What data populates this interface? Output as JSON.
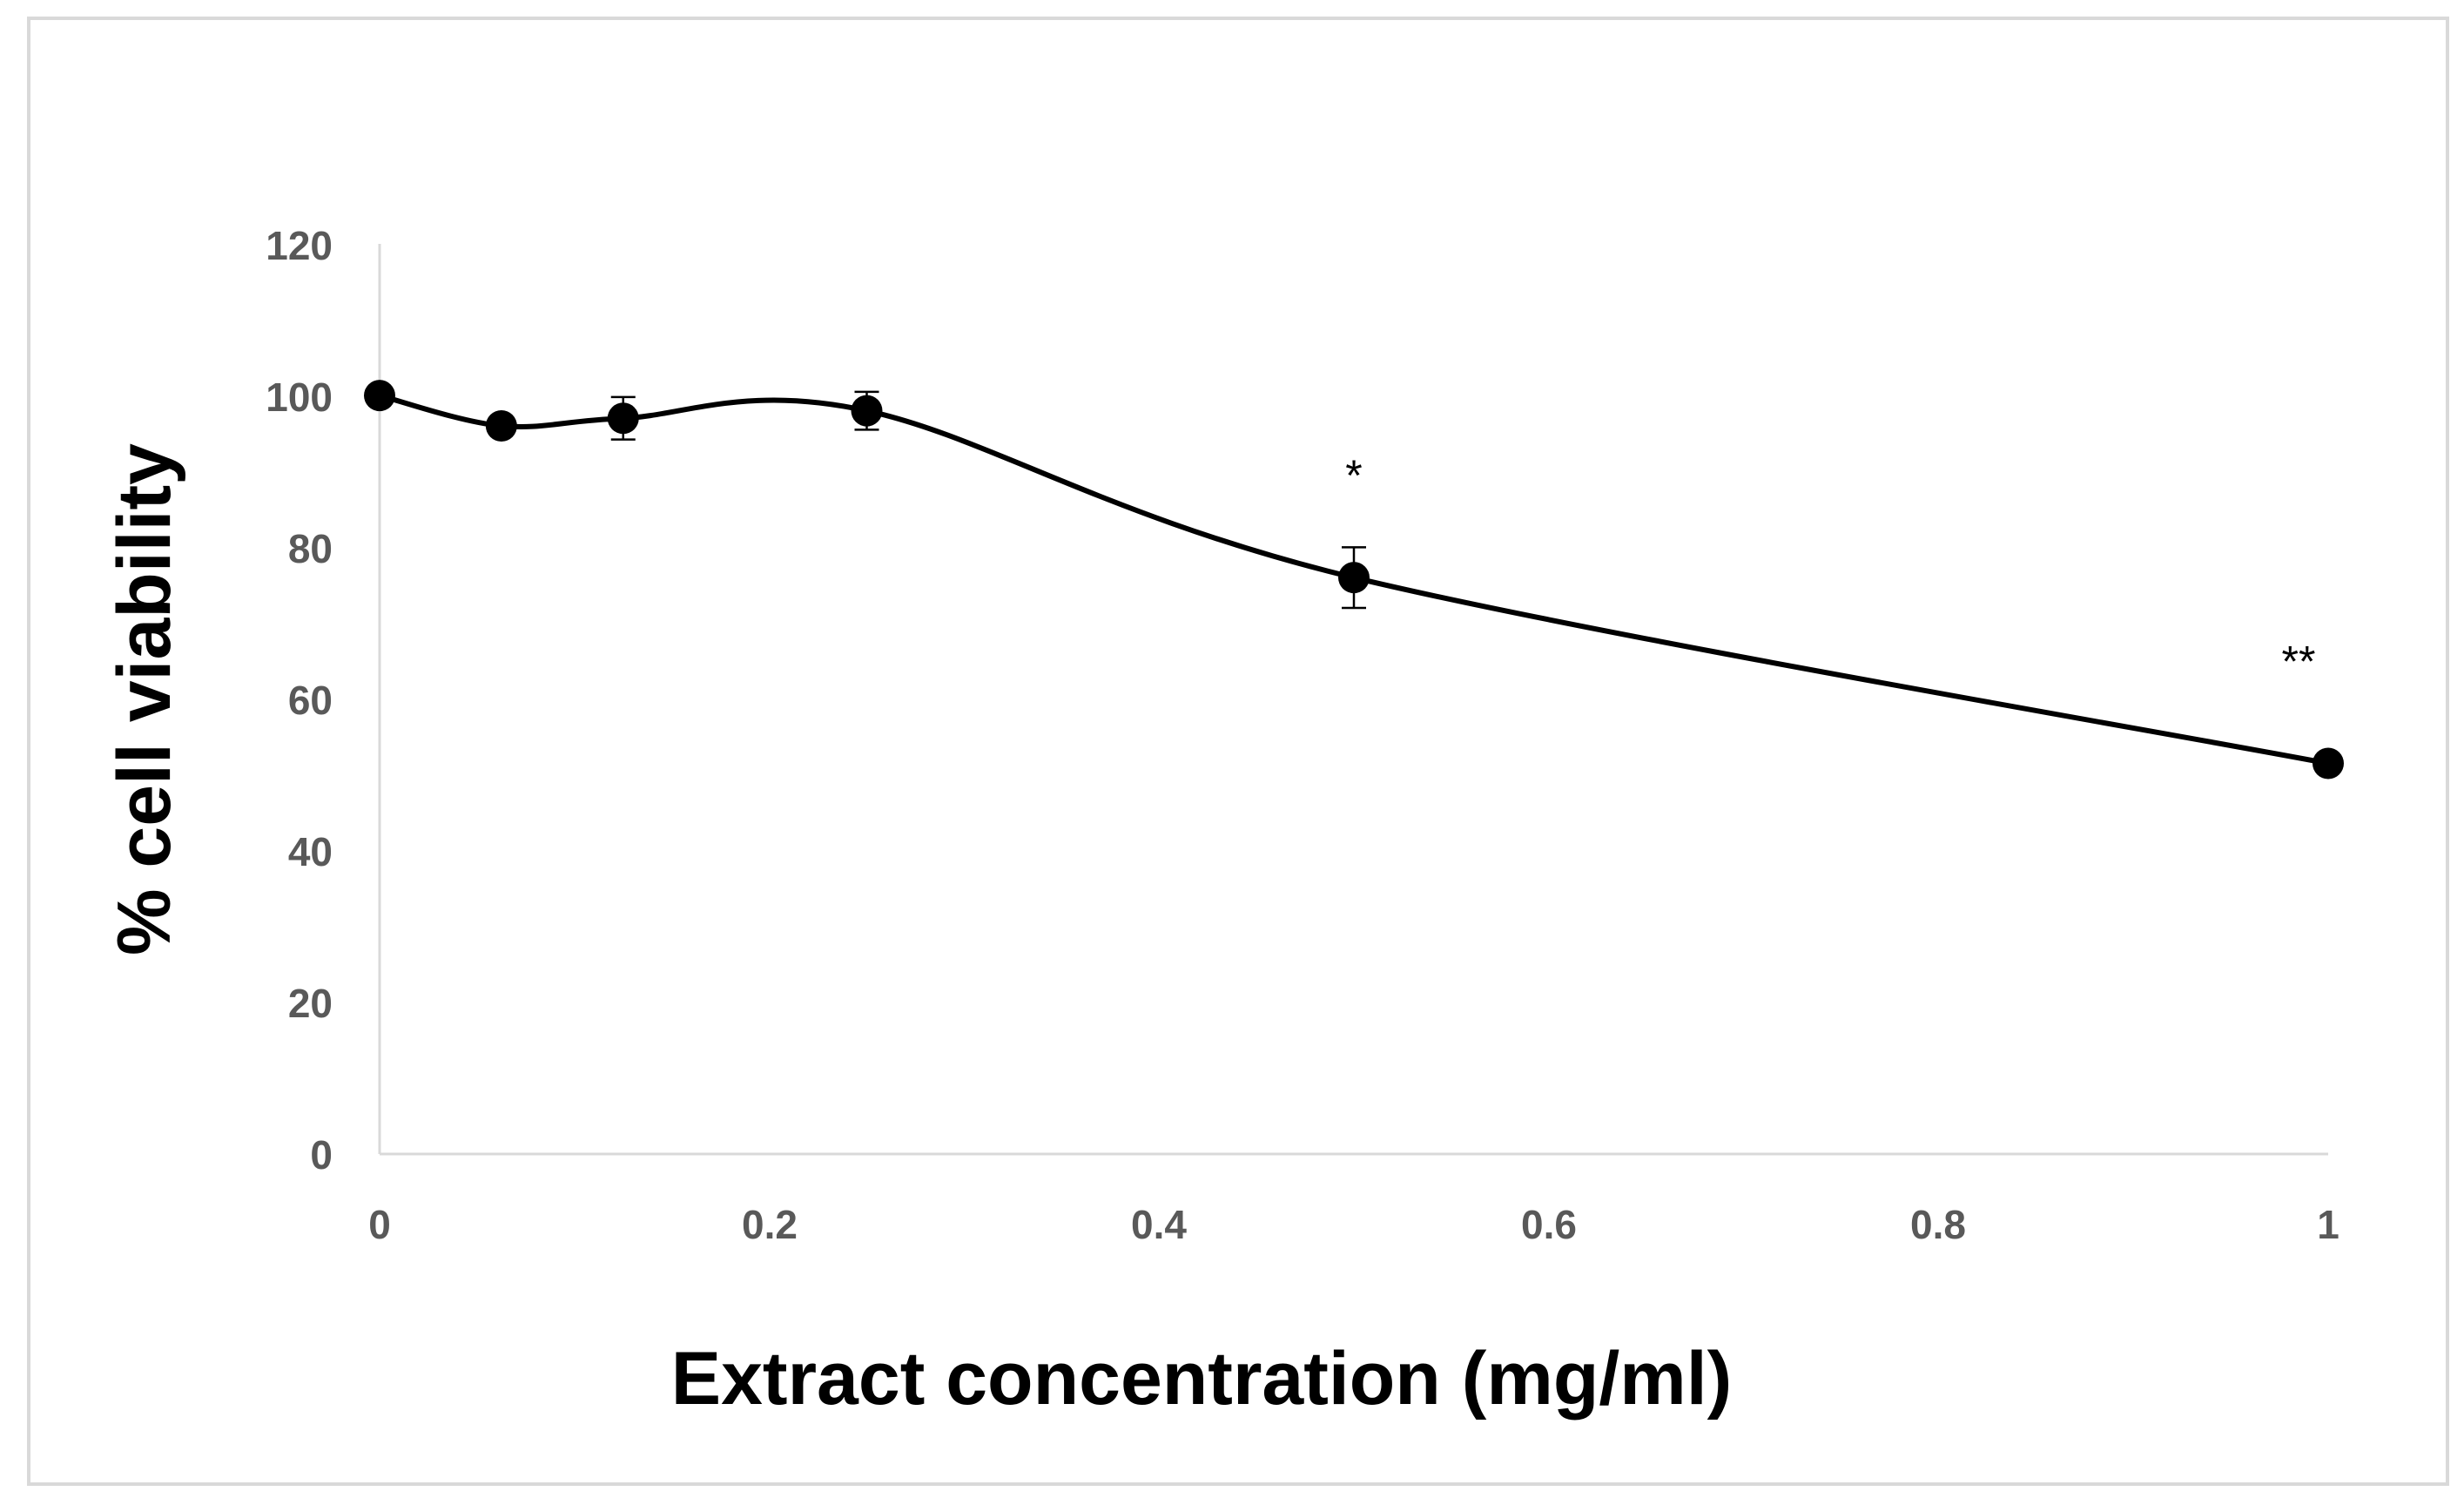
{
  "chart_data": {
    "type": "line",
    "title": "",
    "xlabel": "Extract concentration (mg/ml)",
    "ylabel": "% cell viability",
    "xlim": [
      0,
      1
    ],
    "ylim": [
      0,
      120
    ],
    "x_ticks": [
      "0",
      "0.2",
      "0.4",
      "0.6",
      "0.8",
      "1"
    ],
    "y_ticks": [
      "0",
      "20",
      "40",
      "60",
      "80",
      "100",
      "120"
    ],
    "grid": false,
    "legend": "none",
    "smooth": true,
    "series": [
      {
        "name": "% cell viability",
        "x": [
          0,
          0.0625,
          0.125,
          0.25,
          0.5,
          1
        ],
        "y": [
          100,
          96,
          97,
          98,
          76,
          51.5
        ],
        "error": [
          0.5,
          1,
          2.8,
          2.5,
          4,
          1
        ]
      }
    ],
    "annotations": [
      {
        "x": 0.5,
        "y": 76,
        "text": "*"
      },
      {
        "x": 1,
        "y": 51.5,
        "text": "**"
      }
    ],
    "colors": {
      "line": "#000000",
      "marker": "#000000",
      "tick_label": "#595959",
      "axis_line": "#d9d9d9",
      "frame": "#d9d9d9"
    }
  }
}
